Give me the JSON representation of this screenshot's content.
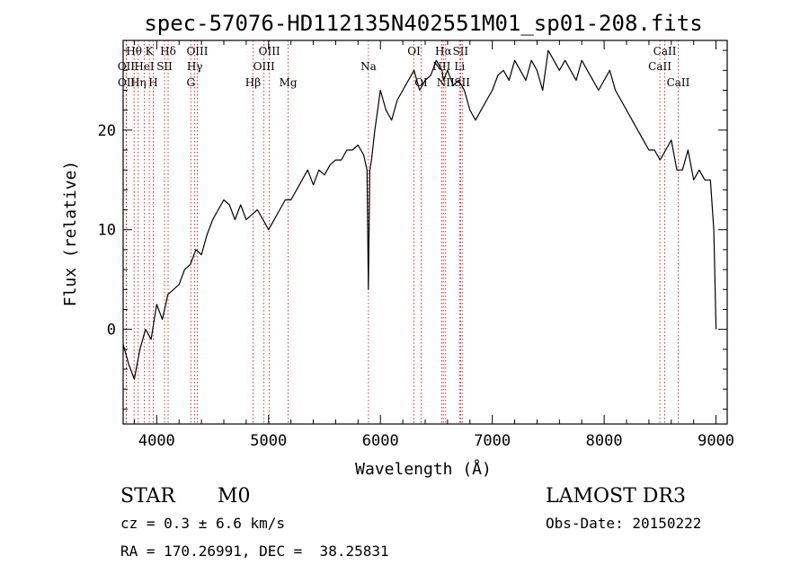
{
  "chart_data": {
    "type": "line",
    "title": "spec-57076-HD112135N402551M01_sp01-208.fits",
    "xlabel": "Wavelength (Å)",
    "ylabel": "Flux (relative)",
    "xlim": [
      3700,
      9100
    ],
    "ylim": [
      -9.5,
      29
    ],
    "xticks": [
      4000,
      5000,
      6000,
      7000,
      8000,
      9000
    ],
    "yticks": [
      0,
      10,
      20
    ],
    "grid": false,
    "series": [
      {
        "x": [
          3700,
          3750,
          3800,
          3850,
          3900,
          3950,
          4000,
          4050,
          4100,
          4150,
          4200,
          4250,
          4300,
          4350,
          4400,
          4450,
          4500,
          4550,
          4600,
          4650,
          4700,
          4750,
          4800,
          4850,
          4900,
          4950,
          5000,
          5050,
          5100,
          5150,
          5200,
          5250,
          5300,
          5350,
          5400,
          5450,
          5500,
          5550,
          5600,
          5650,
          5700,
          5750,
          5800,
          5850,
          5880,
          5892,
          5905,
          5920,
          5950,
          6000,
          6050,
          6100,
          6150,
          6200,
          6250,
          6300,
          6350,
          6400,
          6450,
          6500,
          6550,
          6563,
          6600,
          6650,
          6700,
          6750,
          6800,
          6850,
          6900,
          6950,
          7000,
          7050,
          7100,
          7150,
          7200,
          7250,
          7300,
          7350,
          7400,
          7450,
          7500,
          7550,
          7600,
          7650,
          7700,
          7750,
          7800,
          7850,
          7900,
          7950,
          8000,
          8050,
          8100,
          8150,
          8200,
          8250,
          8300,
          8350,
          8400,
          8450,
          8500,
          8550,
          8600,
          8650,
          8700,
          8750,
          8800,
          8850,
          8900,
          8950,
          8980,
          9000
        ],
        "y": [
          -1.5,
          -3.5,
          -5,
          -2,
          0,
          -1,
          2.5,
          1,
          3.5,
          4,
          4.5,
          6,
          6.5,
          8,
          7.5,
          9.5,
          11,
          12,
          13,
          12.5,
          11,
          12.5,
          11,
          11.5,
          12,
          11,
          10,
          11,
          12,
          13,
          13,
          14,
          15,
          16,
          14.5,
          16,
          15.5,
          16.5,
          17,
          17,
          18,
          18,
          18.5,
          17.5,
          16,
          4,
          16,
          17,
          20,
          24,
          22,
          21,
          23,
          24,
          25,
          26,
          24,
          25,
          25.5,
          27,
          26,
          25,
          26,
          24.5,
          25,
          24,
          22,
          21,
          22,
          23,
          24,
          25.5,
          26,
          25,
          27,
          26,
          25,
          27,
          26,
          24,
          28,
          27,
          26,
          27,
          26,
          25,
          27,
          26,
          25,
          24,
          25,
          26,
          24,
          23,
          22,
          21,
          20,
          19,
          18,
          18,
          17,
          18,
          19,
          16,
          16,
          18,
          15,
          16,
          15,
          15,
          10,
          0
        ]
      }
    ],
    "spectral_lines": [
      {
        "label": "Hθ",
        "x": 3798,
        "row": 0
      },
      {
        "label": "OII",
        "x": 3727,
        "row": 1
      },
      {
        "label": "OII",
        "x": 3729,
        "row": 2
      },
      {
        "label": "Hη",
        "x": 3835,
        "row": 2
      },
      {
        "label": "HeI",
        "x": 3889,
        "row": 1
      },
      {
        "label": "K",
        "x": 3934,
        "row": 0
      },
      {
        "label": "SII",
        "x": 4070,
        "row": 1
      },
      {
        "label": "H",
        "x": 3969,
        "row": 2
      },
      {
        "label": "Hδ",
        "x": 4102,
        "row": 0
      },
      {
        "label": "OIII",
        "x": 4363,
        "row": 0
      },
      {
        "label": "Hγ",
        "x": 4340,
        "row": 1
      },
      {
        "label": "G",
        "x": 4305,
        "row": 2
      },
      {
        "label": "Hβ",
        "x": 4861,
        "row": 2
      },
      {
        "label": "OIII",
        "x": 5007,
        "row": 0
      },
      {
        "label": "OIII",
        "x": 4959,
        "row": 1
      },
      {
        "label": "Mg",
        "x": 5175,
        "row": 2
      },
      {
        "label": "Na",
        "x": 5893,
        "row": 1
      },
      {
        "label": "OI",
        "x": 6300,
        "row": 0
      },
      {
        "label": "OI",
        "x": 6364,
        "row": 2
      },
      {
        "label": "Hα",
        "x": 6563,
        "row": 0
      },
      {
        "label": "NII",
        "x": 6548,
        "row": 1
      },
      {
        "label": "NII",
        "x": 6583,
        "row": 2
      },
      {
        "label": "SII",
        "x": 6716,
        "row": 0
      },
      {
        "label": "Li",
        "x": 6708,
        "row": 1
      },
      {
        "label": "SII",
        "x": 6731,
        "row": 2
      },
      {
        "label": "CaII",
        "x": 8542,
        "row": 0
      },
      {
        "label": "CaII",
        "x": 8498,
        "row": 1
      },
      {
        "label": "CaII",
        "x": 8662,
        "row": 2
      }
    ]
  },
  "info": {
    "object_class": "STAR",
    "subclass": "M0",
    "survey": "LAMOST DR3",
    "cz": "cz = 0.3 ± 6.6 km/s",
    "obs_date": "Obs-Date: 20150222",
    "coords": "RA = 170.26991, DEC =  38.25831"
  },
  "colors": {
    "spectrum": "#000000",
    "line_markers": "#cc0000",
    "axes": "#000000"
  }
}
